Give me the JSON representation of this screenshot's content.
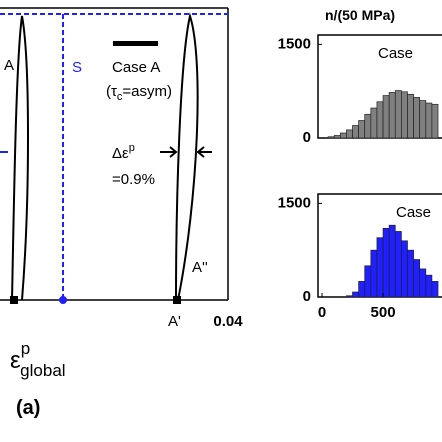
{
  "chart_data": [
    {
      "type": "line",
      "xlim": [
        0,
        0.04
      ],
      "xticks": [
        0.04
      ],
      "x_label": {
        "base": "ε",
        "sup": "p",
        "sub": "global"
      },
      "panel_label": "(a)",
      "annotations": {
        "point_a": "A",
        "point_s": "S",
        "legend": "Case A",
        "case_note": {
          "pre": "(τ",
          "sub": "c",
          "post": "=asym)"
        },
        "delta": {
          "base": "Δε",
          "sup": "p"
        },
        "delta_value": "=0.9%",
        "point_a2": "A''",
        "point_a1": "A'"
      }
    },
    {
      "type": "histogram",
      "y_label": "n/(50 MPa)",
      "annotation": "Case",
      "color": "#808080",
      "bins": [
        50,
        100,
        150,
        200,
        250,
        300,
        350,
        400,
        450,
        500,
        550,
        600,
        650,
        700,
        750,
        800,
        850,
        900,
        950
      ],
      "values": [
        20,
        40,
        80,
        130,
        200,
        280,
        380,
        480,
        580,
        680,
        730,
        760,
        740,
        700,
        650,
        600,
        560,
        540
      ],
      "xlim": [
        0,
        950
      ],
      "ylim": [
        0,
        1650
      ],
      "yticks": [
        0,
        1500
      ]
    },
    {
      "type": "histogram",
      "annotation": "Case",
      "color": "#1f1fff",
      "bins": [
        200,
        250,
        300,
        350,
        400,
        450,
        500,
        550,
        600,
        650,
        700,
        750,
        800,
        850,
        900,
        950
      ],
      "values": [
        20,
        80,
        250,
        500,
        750,
        950,
        1100,
        1150,
        1050,
        900,
        750,
        600,
        450,
        350,
        250
      ],
      "xlim": [
        0,
        950
      ],
      "ylim": [
        0,
        1650
      ],
      "yticks": [
        0,
        1500
      ],
      "xticks": [
        0,
        500
      ]
    }
  ]
}
